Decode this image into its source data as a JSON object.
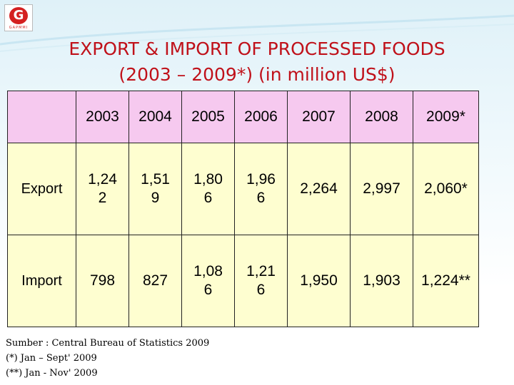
{
  "logo": {
    "letter": "G",
    "tag": "GAPMMI"
  },
  "title": {
    "line1": "EXPORT & IMPORT OF PROCESSED FOODS",
    "line2": "(2003 – 2009*) (in million US$)"
  },
  "table": {
    "years": [
      "2003",
      "2004",
      "2005",
      "2006",
      "2007",
      "2008",
      "2009*"
    ],
    "rows": [
      {
        "label": "Export",
        "values": [
          "1,24\n2",
          "1,51\n9",
          "1,80\n6",
          "1,96\n6",
          "2,264",
          "2,997",
          "2,060*"
        ]
      },
      {
        "label": "Import",
        "values": [
          "798",
          "827",
          "1,08\n6",
          "1,21\n6",
          "1,950",
          "1,903",
          "1,224**"
        ]
      }
    ]
  },
  "footnotes": {
    "source": "Sumber : Central Bureau of Statistics 2009",
    "note1": "(*) Jan – Sept' 2009",
    "note2": "(**) Jan - Nov' 2009"
  },
  "colors": {
    "title": "#c0111a",
    "header_bg": "#f6c9ef",
    "row_bg": "#fefed0"
  }
}
